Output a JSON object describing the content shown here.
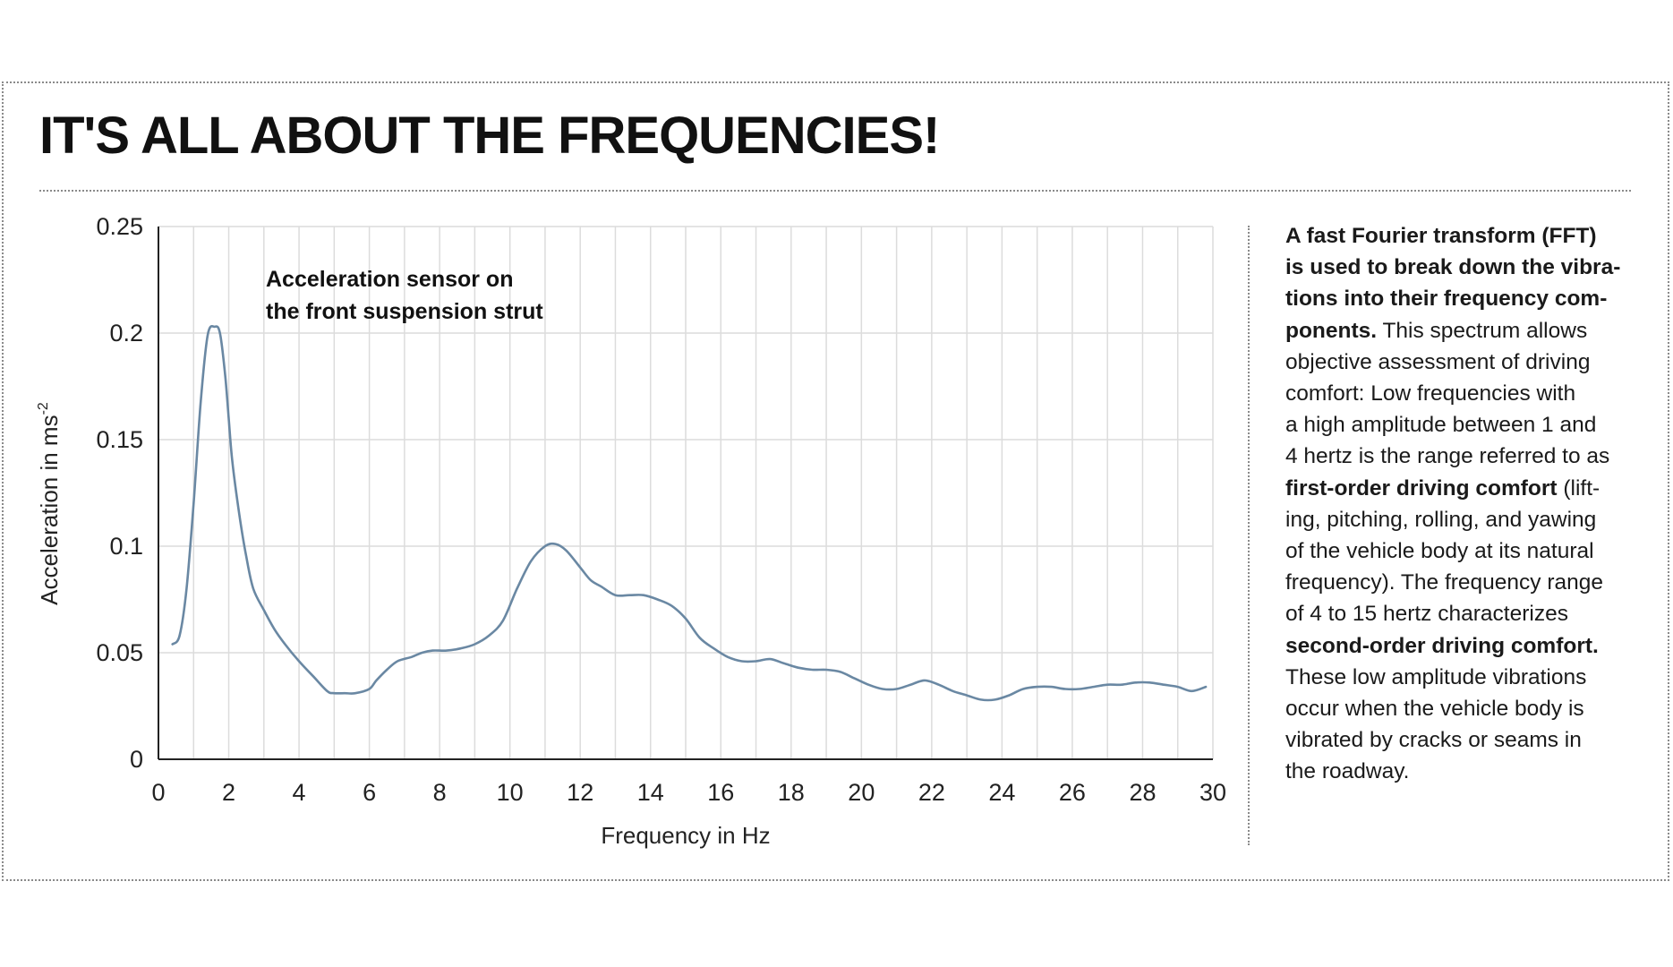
{
  "title": "IT'S ALL ABOUT THE FREQUENCIES!",
  "chart_data": {
    "type": "line",
    "title": "",
    "xlabel": "Frequency in Hz",
    "ylabel": "Acceleration in ms",
    "ylabel_sup": "-2",
    "xlim": [
      0,
      30
    ],
    "ylim": [
      0,
      0.25
    ],
    "x_ticks": [
      "0",
      "2",
      "4",
      "6",
      "8",
      "10",
      "12",
      "14",
      "16",
      "18",
      "20",
      "22",
      "24",
      "26",
      "28",
      "30"
    ],
    "y_ticks": [
      "0",
      "0.05",
      "0.1",
      "0.15",
      "0.2",
      "0.25"
    ],
    "grid": true,
    "annotation": [
      "Acceleration sensor on",
      "the front suspension strut"
    ],
    "series": [
      {
        "color": "#6a88a3",
        "x": [
          0.4,
          0.6,
          0.8,
          1.0,
          1.2,
          1.4,
          1.6,
          1.75,
          1.9,
          2.0,
          2.1,
          2.3,
          2.5,
          2.7,
          3.0,
          3.3,
          3.6,
          4.0,
          4.4,
          4.8,
          5.0,
          5.3,
          5.6,
          6.0,
          6.2,
          6.5,
          6.8,
          7.2,
          7.5,
          7.8,
          8.2,
          8.6,
          9.0,
          9.4,
          9.8,
          10.2,
          10.6,
          11.0,
          11.3,
          11.6,
          12.0,
          12.3,
          12.6,
          13.0,
          13.4,
          13.8,
          14.2,
          14.6,
          15.0,
          15.4,
          15.8,
          16.2,
          16.6,
          17.0,
          17.4,
          17.8,
          18.2,
          18.6,
          19.0,
          19.4,
          19.8,
          20.2,
          20.6,
          21.0,
          21.4,
          21.8,
          22.2,
          22.6,
          23.0,
          23.4,
          23.8,
          24.2,
          24.6,
          25.0,
          25.4,
          25.8,
          26.2,
          26.6,
          27.0,
          27.4,
          27.8,
          28.2,
          28.6,
          29.0,
          29.4,
          29.8
        ],
        "y": [
          0.054,
          0.058,
          0.08,
          0.12,
          0.167,
          0.199,
          0.203,
          0.2,
          0.18,
          0.16,
          0.14,
          0.115,
          0.095,
          0.08,
          0.07,
          0.061,
          0.054,
          0.046,
          0.039,
          0.032,
          0.031,
          0.031,
          0.031,
          0.033,
          0.037,
          0.042,
          0.046,
          0.048,
          0.05,
          0.051,
          0.051,
          0.052,
          0.054,
          0.058,
          0.065,
          0.08,
          0.093,
          0.1,
          0.101,
          0.098,
          0.09,
          0.084,
          0.081,
          0.077,
          0.077,
          0.077,
          0.075,
          0.072,
          0.066,
          0.057,
          0.052,
          0.048,
          0.046,
          0.046,
          0.047,
          0.045,
          0.043,
          0.042,
          0.042,
          0.041,
          0.038,
          0.035,
          0.033,
          0.033,
          0.035,
          0.037,
          0.035,
          0.032,
          0.03,
          0.028,
          0.028,
          0.03,
          0.033,
          0.034,
          0.034,
          0.033,
          0.033,
          0.034,
          0.035,
          0.035,
          0.036,
          0.036,
          0.035,
          0.034,
          0.032,
          0.034
        ]
      }
    ]
  },
  "side_text": [
    [
      {
        "t": "A fast Fourier transform (FFT)",
        "b": true
      }
    ],
    [
      {
        "t": "is used to break down the vibra-",
        "b": true
      }
    ],
    [
      {
        "t": "tions into their frequency com-",
        "b": true
      }
    ],
    [
      {
        "t": "ponents.",
        "b": true
      },
      {
        "t": " This spectrum allows",
        "b": false
      }
    ],
    [
      {
        "t": "objective assessment of driving",
        "b": false
      }
    ],
    [
      {
        "t": "comfort: Low frequencies with",
        "b": false
      }
    ],
    [
      {
        "t": "a high amplitude between 1 and",
        "b": false
      }
    ],
    [
      {
        "t": "4 hertz is the range referred to as",
        "b": false
      }
    ],
    [
      {
        "t": "first-order driving comfort",
        "b": true
      },
      {
        "t": " (lift-",
        "b": false
      }
    ],
    [
      {
        "t": "ing, pitching, rolling, and yawing",
        "b": false
      }
    ],
    [
      {
        "t": "of the vehicle body at its natural",
        "b": false
      }
    ],
    [
      {
        "t": "frequency). The frequency range",
        "b": false
      }
    ],
    [
      {
        "t": "of 4 to 15 hertz characterizes",
        "b": false
      }
    ],
    [
      {
        "t": "second-order driving comfort.",
        "b": true
      }
    ],
    [
      {
        "t": "These low amplitude vibrations",
        "b": false
      }
    ],
    [
      {
        "t": "occur when the vehicle body is",
        "b": false
      }
    ],
    [
      {
        "t": "vibrated by cracks or seams in",
        "b": false
      }
    ],
    [
      {
        "t": "the roadway.",
        "b": false
      }
    ]
  ]
}
